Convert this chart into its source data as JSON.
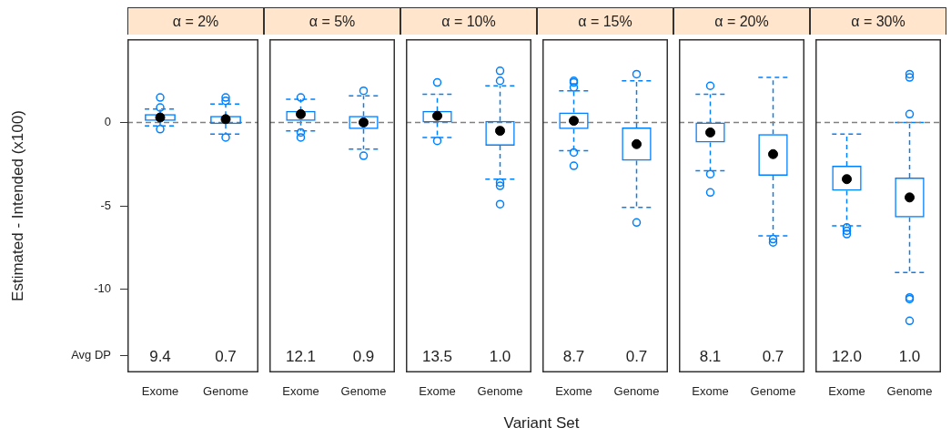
{
  "chart_data": [
    {
      "type": "box",
      "title": "α = 2%",
      "ylabel": "Estimated - Intended (x100)",
      "categories": [
        "Exome",
        "Genome"
      ],
      "series": [
        {
          "color": "#0080ff",
          "boxes": [
            {
              "low": -0.2,
              "q1": 0.1,
              "median": 0.3,
              "q3": 0.5,
              "high": 0.8,
              "outliers": [
                1.5,
                0.9,
                -0.4
              ]
            },
            {
              "low": -0.7,
              "q1": -0.1,
              "median": 0.2,
              "q3": 0.4,
              "high": 1.1,
              "outliers": [
                1.5,
                1.3,
                -0.9
              ]
            }
          ]
        }
      ],
      "ylim": [
        -15,
        5
      ],
      "yticks": [
        0,
        -5,
        -10,
        {
          "value": -14,
          "label": "Avg DP"
        }
      ],
      "ref_lines": [
        {
          "axis": "y",
          "value": 0,
          "color": "#808080",
          "line_style": "dashed"
        }
      ],
      "annotations": [
        "9.4",
        "0.7"
      ]
    },
    {
      "type": "box",
      "title": "α = 5%",
      "categories": [
        "Exome",
        "Genome"
      ],
      "series": [
        {
          "color": "#0080ff",
          "boxes": [
            {
              "low": -0.5,
              "q1": 0.1,
              "median": 0.5,
              "q3": 0.7,
              "high": 1.4,
              "outliers": [
                1.5,
                -0.6,
                -0.9
              ]
            },
            {
              "low": -1.6,
              "q1": -0.4,
              "median": 0.0,
              "q3": 0.4,
              "high": 1.6,
              "outliers": [
                1.9,
                -2.0
              ]
            }
          ]
        }
      ],
      "ylim": [
        -15,
        5
      ],
      "tick_labels": "x",
      "ref_lines": [
        {
          "axis": "y",
          "value": 0,
          "color": "#808080",
          "line_style": "dashed"
        }
      ],
      "annotations": [
        "12.1",
        "0.9"
      ]
    },
    {
      "type": "box",
      "title": "α = 10%",
      "categories": [
        "Exome",
        "Genome"
      ],
      "series": [
        {
          "color": "#0080ff",
          "boxes": [
            {
              "low": -0.9,
              "q1": 0.0,
              "median": 0.4,
              "q3": 0.7,
              "high": 1.7,
              "outliers": [
                2.4,
                -1.1
              ]
            },
            {
              "low": -3.4,
              "q1": -1.4,
              "median": -0.5,
              "q3": 0.1,
              "high": 2.2,
              "outliers": [
                3.1,
                2.5,
                -3.6,
                -3.8,
                -4.9
              ]
            }
          ]
        }
      ],
      "ylim": [
        -15,
        5
      ],
      "tick_labels": "x",
      "ref_lines": [
        {
          "axis": "y",
          "value": 0,
          "color": "#808080",
          "line_style": "dashed"
        }
      ],
      "annotations": [
        "13.5",
        "1.0"
      ]
    },
    {
      "type": "box",
      "title": "α = 15%",
      "xlabel": "Variant Set",
      "categories": [
        "Exome",
        "Genome"
      ],
      "series": [
        {
          "color": "#0080ff",
          "boxes": [
            {
              "low": -1.7,
              "q1": -0.4,
              "median": 0.1,
              "q3": 0.6,
              "high": 1.9,
              "outliers": [
                2.5,
                2.4,
                2.1,
                -1.8,
                -2.6
              ]
            },
            {
              "low": -5.1,
              "q1": -2.3,
              "median": -1.3,
              "q3": -0.3,
              "high": 2.5,
              "outliers": [
                2.9,
                -6.0
              ]
            }
          ]
        }
      ],
      "ylim": [
        -15,
        5
      ],
      "tick_labels": "x",
      "ref_lines": [
        {
          "axis": "y",
          "value": 0,
          "color": "#808080",
          "line_style": "dashed"
        }
      ],
      "annotations": [
        "8.7",
        "0.7"
      ]
    },
    {
      "type": "box",
      "title": "α = 20%",
      "categories": [
        "Exome",
        "Genome"
      ],
      "series": [
        {
          "color": "#0080ff",
          "boxes": [
            {
              "low": -2.9,
              "q1": -1.2,
              "median": -0.6,
              "q3": 0.0,
              "high": 1.7,
              "outliers": [
                2.2,
                -3.1,
                -4.2
              ]
            },
            {
              "low": -6.8,
              "q1": -3.2,
              "median": -1.9,
              "q3": -0.7,
              "high": 2.7,
              "outliers": [
                -7.0,
                -7.2
              ]
            }
          ]
        }
      ],
      "ylim": [
        -15,
        5
      ],
      "tick_labels": "x",
      "ref_lines": [
        {
          "axis": "y",
          "value": 0,
          "color": "#808080",
          "line_style": "dashed"
        }
      ],
      "annotations": [
        "8.1",
        "0.7"
      ]
    },
    {
      "type": "box",
      "title": "α = 30%",
      "categories": [
        "Exome",
        "Genome"
      ],
      "series": [
        {
          "color": "#0080ff",
          "boxes": [
            {
              "low": -6.2,
              "q1": -4.1,
              "median": -3.4,
              "q3": -2.6,
              "high": -0.7,
              "outliers": [
                -6.3,
                -6.5,
                -6.7
              ]
            },
            {
              "low": -9.0,
              "q1": -5.7,
              "median": -4.5,
              "q3": -3.3,
              "high": 0.0,
              "outliers": [
                2.9,
                2.7,
                0.5,
                -10.5,
                -10.6,
                -11.9
              ]
            }
          ]
        }
      ],
      "ylim": [
        -15,
        5
      ],
      "tick_labels": "x",
      "ref_lines": [
        {
          "axis": "y",
          "value": 0,
          "color": "#808080",
          "line_style": "dashed"
        }
      ],
      "annotations": [
        "12.0",
        "1.0"
      ]
    }
  ]
}
